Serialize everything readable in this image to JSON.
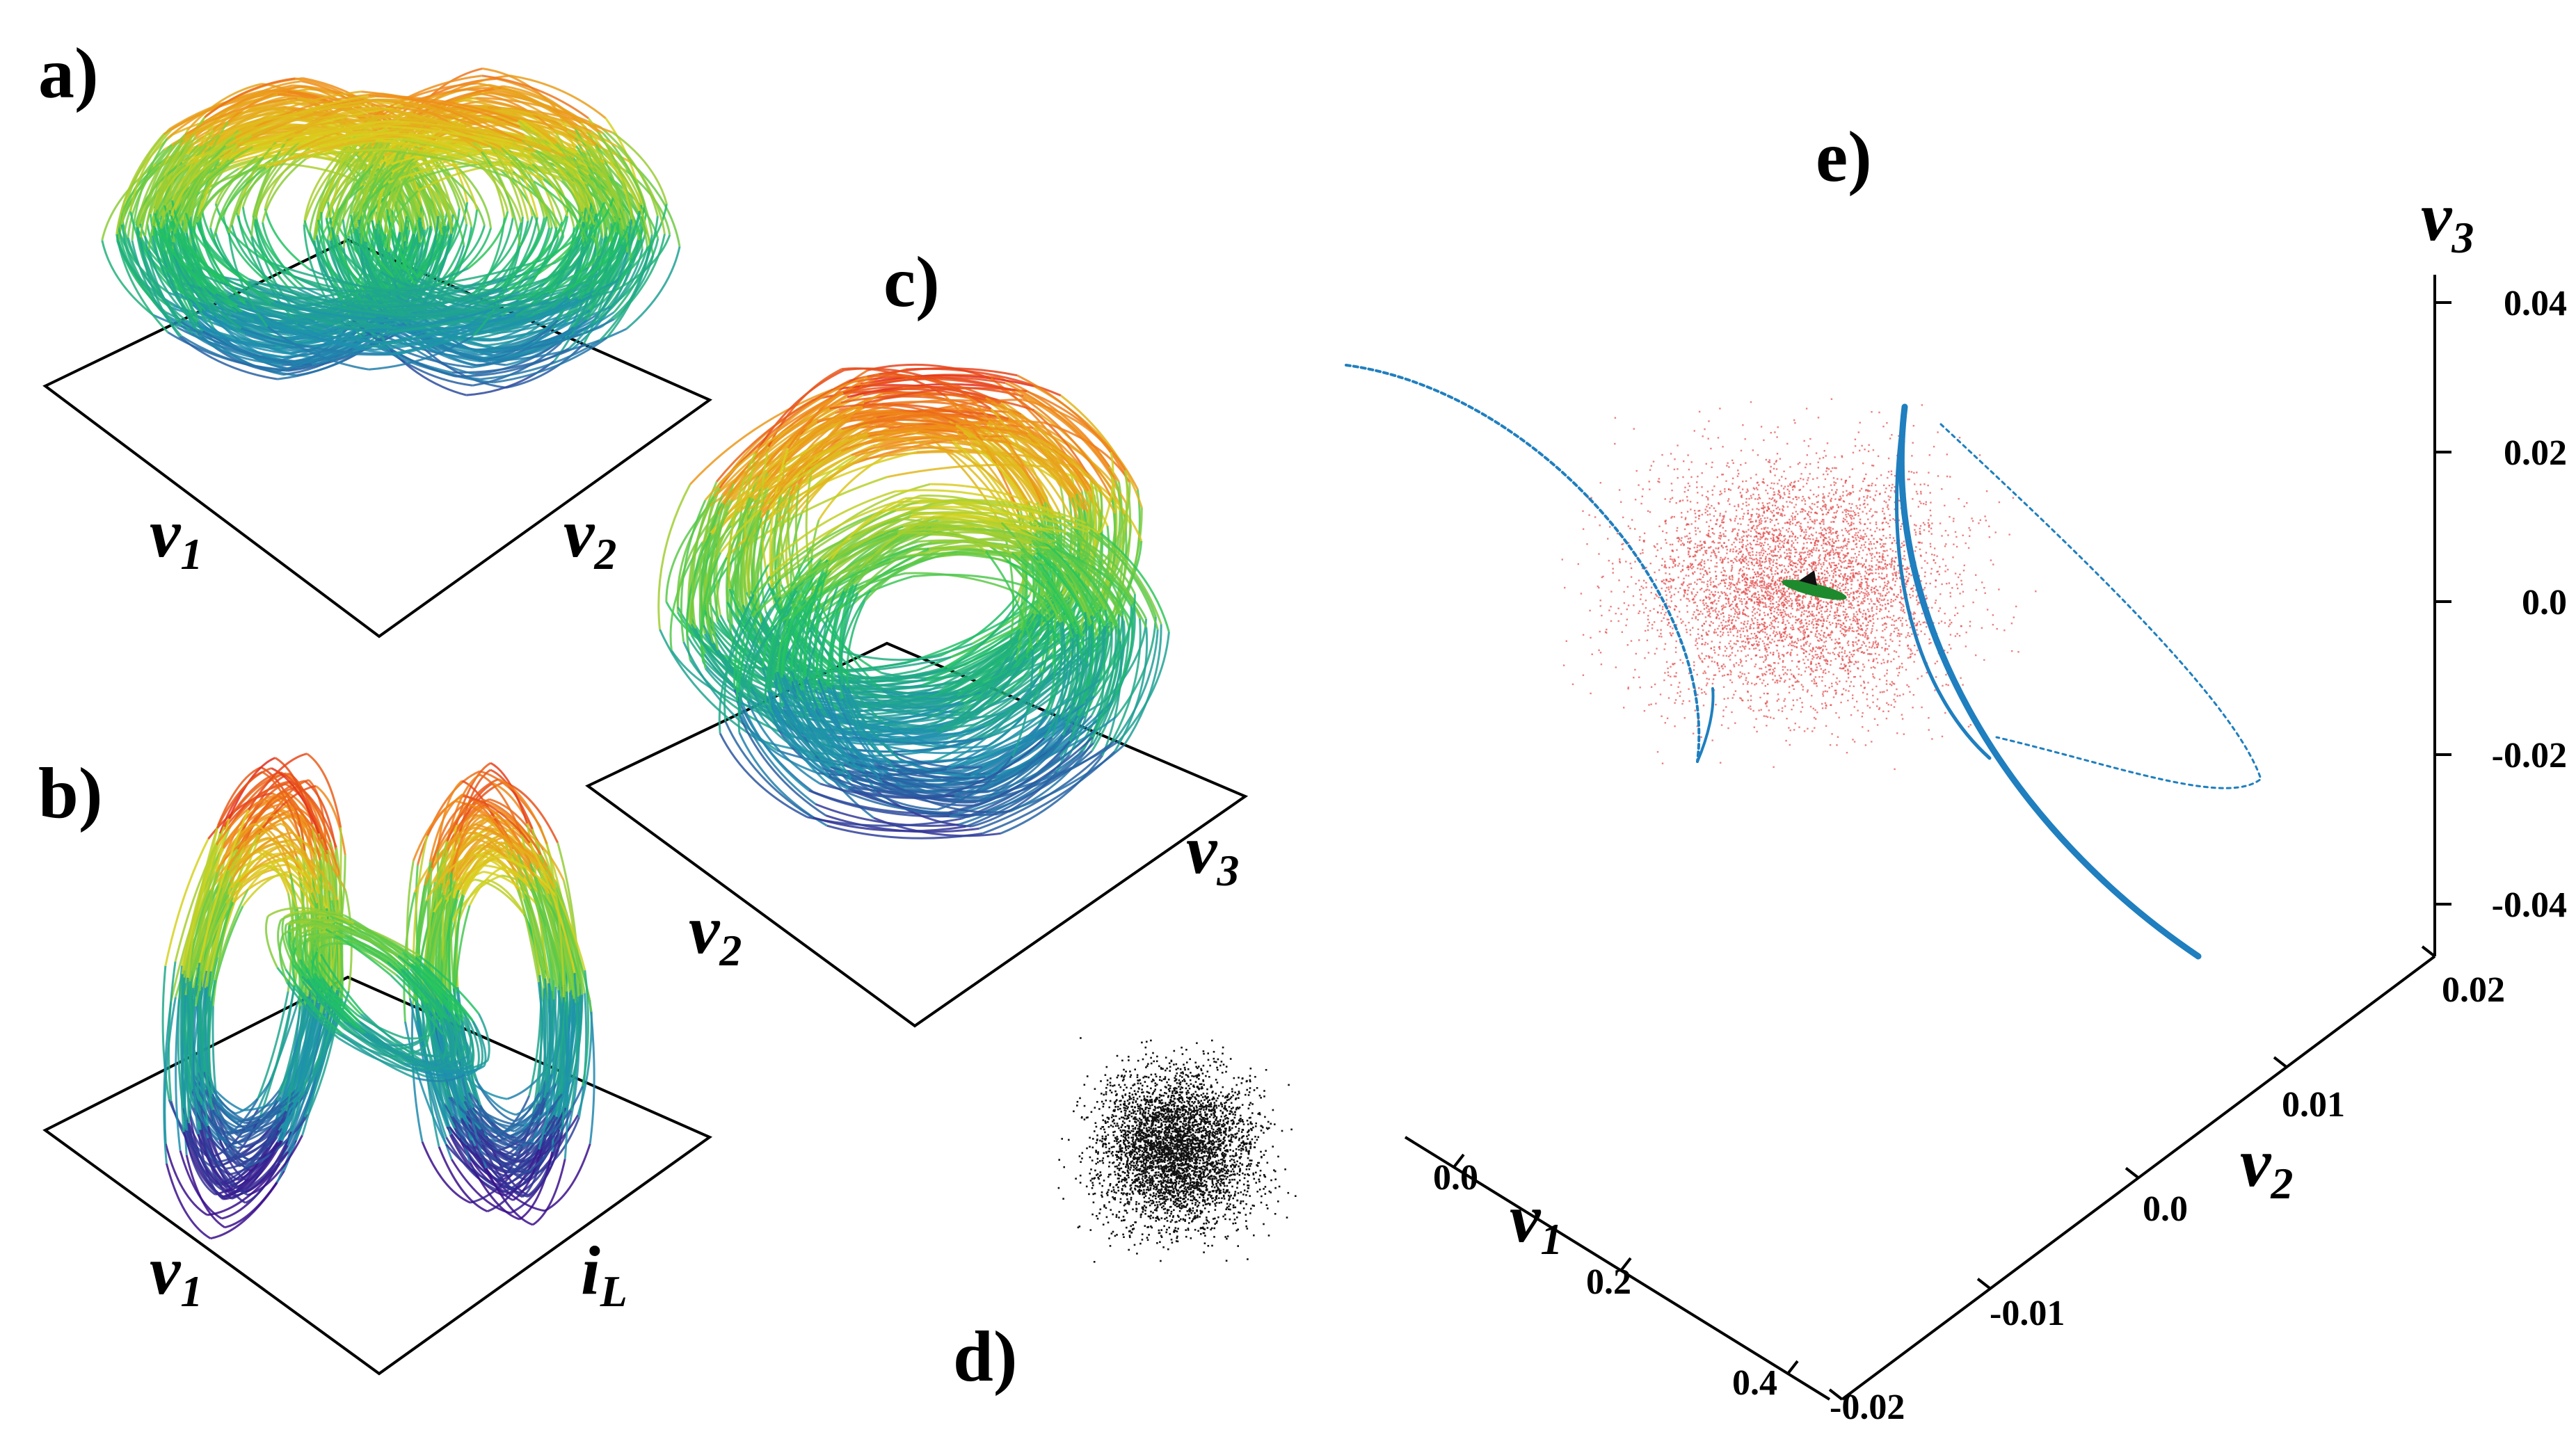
{
  "panels": {
    "a": {
      "label": "a)",
      "x_axis": "v",
      "x_sub": "1",
      "y_axis": "v",
      "y_sub": "2"
    },
    "b": {
      "label": "b)",
      "x_axis": "v",
      "x_sub": "1",
      "y_axis": "i",
      "y_sub": "L"
    },
    "c": {
      "label": "c)",
      "x_axis": "v",
      "x_sub": "2",
      "y_axis": "v",
      "y_sub": "3"
    },
    "d": {
      "label": "d)"
    },
    "e": {
      "label": "e)",
      "z_axis": "v",
      "z_sub": "3",
      "z_ticks": [
        "0.04",
        "0.02",
        "0.0",
        "-0.02",
        "-0.04"
      ],
      "v2_axis": "v",
      "v2_sub": "2",
      "v2_ticks": [
        "0.02",
        "0.01",
        "0.0",
        "-0.01",
        "-0.02"
      ],
      "v1_axis": "v",
      "v1_sub": "1",
      "v1_ticks": [
        "0.0",
        "0.2",
        "0.4"
      ]
    }
  },
  "colors": {
    "attractor_low": "#3b0f8c",
    "attractor_mid": "#22c55e",
    "attractor_high": "#e11d1d",
    "scatter_red": "#e34a4a",
    "curve_blue": "#1f7fbf",
    "center_green": "#1e8a2e",
    "noise_black": "#111111"
  }
}
